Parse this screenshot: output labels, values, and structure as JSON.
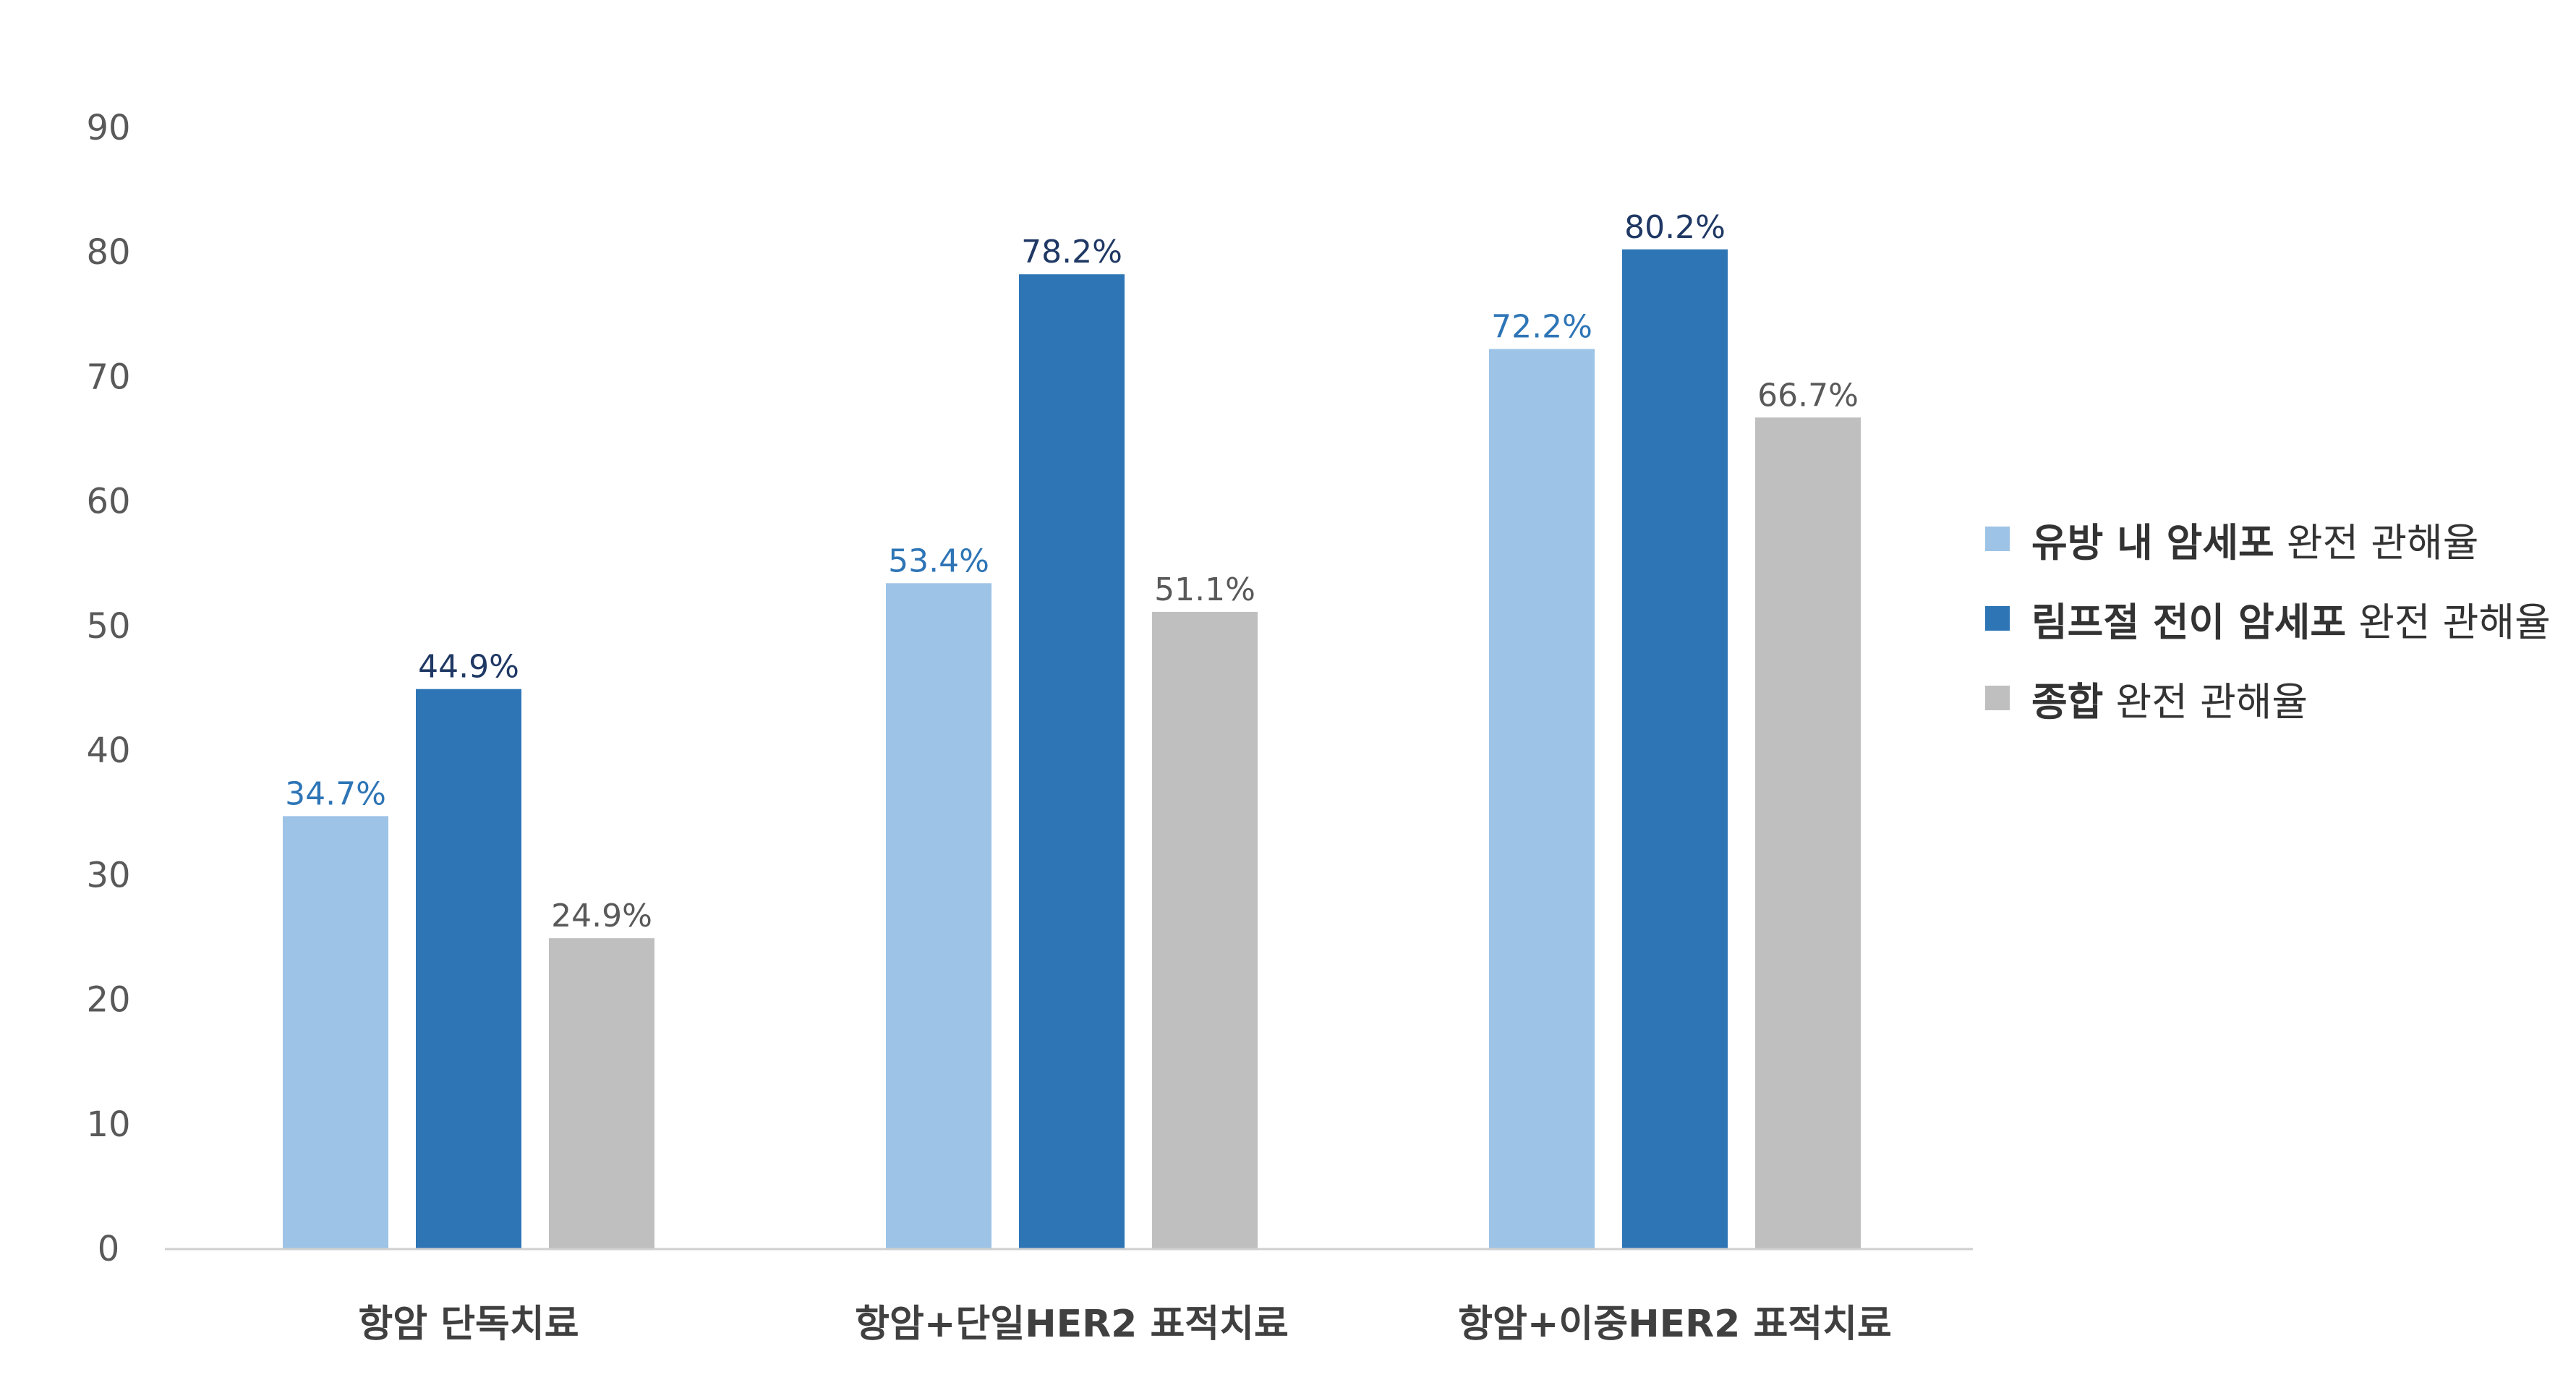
{
  "chart_data": {
    "type": "bar",
    "categories": [
      "항암 단독치료",
      "항암+단일HER2 표적치료",
      "항암+이중HER2 표적치료"
    ],
    "series": [
      {
        "name": "유방 내 암세포 완전 관해율",
        "name_bold": "유방 내 암세포",
        "name_rest": " 완전 관해율",
        "values": [
          34.7,
          53.4,
          72.2
        ],
        "labels": [
          "34.7%",
          "53.4%",
          "72.2%"
        ],
        "color": "#9DC3E6",
        "label_color": "#2E75B6"
      },
      {
        "name": "림프절 전이 암세포 완전 관해율",
        "name_bold": "림프절 전이 암세포",
        "name_rest": " 완전 관해율",
        "values": [
          44.9,
          78.2,
          80.2
        ],
        "labels": [
          "44.9%",
          "78.2%",
          "80.2%"
        ],
        "color": "#2E75B6",
        "label_color": "#1F3864"
      },
      {
        "name": "종합 완전 관해율",
        "name_bold": "종합",
        "name_rest": " 완전 관해율",
        "values": [
          24.9,
          51.1,
          66.7
        ],
        "labels": [
          "24.9%",
          "51.1%",
          "66.7%"
        ],
        "color": "#BFBFBF",
        "label_color": "#595959"
      }
    ],
    "ylim": [
      0,
      90
    ],
    "yticks": [
      "0",
      "10",
      "20",
      "30",
      "40",
      "50",
      "60",
      "70",
      "80",
      "90"
    ],
    "grid": false,
    "legend": "right",
    "title": "",
    "xlabel": "",
    "ylabel": ""
  }
}
